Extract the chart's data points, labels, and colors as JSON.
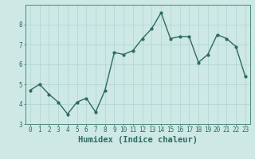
{
  "x": [
    0,
    1,
    2,
    3,
    4,
    5,
    6,
    7,
    8,
    9,
    10,
    11,
    12,
    13,
    14,
    15,
    16,
    17,
    18,
    19,
    20,
    21,
    22,
    23
  ],
  "y": [
    4.7,
    5.0,
    4.5,
    4.1,
    3.5,
    4.1,
    4.3,
    3.6,
    4.7,
    6.6,
    6.5,
    6.7,
    7.3,
    7.8,
    8.6,
    7.3,
    7.4,
    7.4,
    6.1,
    6.5,
    7.5,
    7.3,
    6.9,
    5.4
  ],
  "line_color": "#2e6b5e",
  "marker": "o",
  "marker_size": 2.0,
  "linewidth": 1.0,
  "xlabel": "Humidex (Indice chaleur)",
  "bg_color": "#cde8e5",
  "grid_color": "#afd4d0",
  "xlim": [
    -0.5,
    23.5
  ],
  "ylim": [
    3,
    9
  ],
  "yticks": [
    3,
    4,
    5,
    6,
    7,
    8
  ],
  "xticks": [
    0,
    1,
    2,
    3,
    4,
    5,
    6,
    7,
    8,
    9,
    10,
    11,
    12,
    13,
    14,
    15,
    16,
    17,
    18,
    19,
    20,
    21,
    22,
    23
  ],
  "xtick_labels": [
    "0",
    "1",
    "2",
    "3",
    "4",
    "5",
    "6",
    "7",
    "8",
    "9",
    "10",
    "11",
    "12",
    "13",
    "14",
    "15",
    "16",
    "17",
    "18",
    "19",
    "20",
    "21",
    "22",
    "23"
  ],
  "tick_fontsize": 5.5,
  "xlabel_fontsize": 7.5,
  "tick_color": "#2e6b5e",
  "label_color": "#2e6b5e",
  "spine_color": "#4a8a7a"
}
